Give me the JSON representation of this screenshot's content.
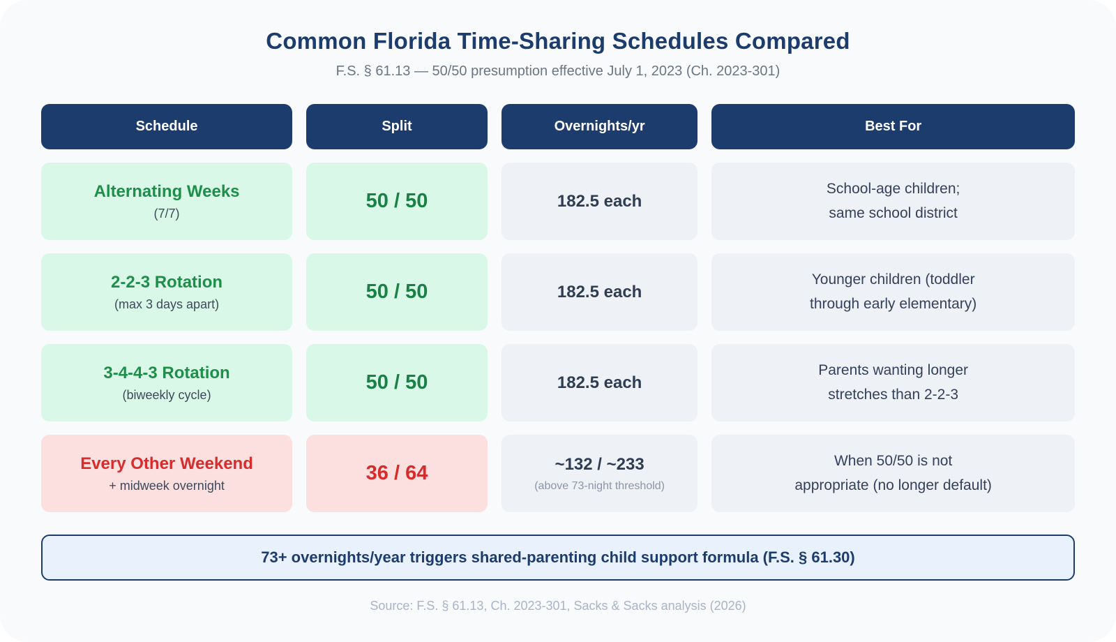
{
  "title": "Common Florida Time-Sharing Schedules Compared",
  "subtitle": "F.S. § 61.13 — 50/50 presumption effective July 1, 2023 (Ch. 2023-301)",
  "table": {
    "headers": [
      "Schedule",
      "Split",
      "Overnights/yr",
      "Best For"
    ],
    "rows": [
      {
        "schedule": "Alternating Weeks",
        "schedule_note": "(7/7)",
        "split": "50 / 50",
        "overnights": "182.5 each",
        "best_for": [
          "School-age children;",
          "same school district"
        ],
        "tone": "positive"
      },
      {
        "schedule": "2-2-3 Rotation",
        "schedule_note": "(max 3 days apart)",
        "split": "50 / 50",
        "overnights": "182.5 each",
        "best_for": [
          "Younger children (toddler",
          "through early elementary)"
        ],
        "tone": "positive"
      },
      {
        "schedule": "3-4-4-3 Rotation",
        "schedule_note": "(biweekly cycle)",
        "split": "50 / 50",
        "overnights": "182.5 each",
        "best_for": [
          "Parents wanting longer",
          "stretches than 2-2-3"
        ],
        "tone": "positive"
      },
      {
        "schedule": "Every Other Weekend",
        "schedule_note": "+ midweek overnight",
        "split": "36 / 64",
        "overnights": "~132 / ~233",
        "overnights_note": "(above 73-night threshold)",
        "best_for": [
          "When 50/50 is not",
          "appropriate (no longer default)"
        ],
        "tone": "negative"
      }
    ]
  },
  "callout": "73+ overnights/year triggers shared-parenting child support formula (F.S. § 61.30)",
  "source": "Source: F.S. § 61.13, Ch. 2023-301, Sacks & Sacks analysis (2026)",
  "colors": {
    "navy": "#1d3c6e",
    "green_text": "#1e8e4b",
    "red_text": "#d62c2c",
    "green_bg": "#d9f8e7",
    "red_bg": "#fcdfdf",
    "neutral_bg": "#eef1f6",
    "callout_bg": "#e9f1fc",
    "card_bg": "#f8fafc"
  },
  "chart_data": {
    "type": "table",
    "title": "Common Florida Time-Sharing Schedules Compared",
    "subtitle": "F.S. § 61.13 — 50/50 presumption effective July 1, 2023 (Ch. 2023-301)",
    "columns": [
      "Schedule",
      "Split",
      "Overnights/yr",
      "Best For"
    ],
    "rows": [
      [
        "Alternating Weeks (7/7)",
        "50 / 50",
        "182.5 each",
        "School-age children; same school district"
      ],
      [
        "2-2-3 Rotation (max 3 days apart)",
        "50 / 50",
        "182.5 each",
        "Younger children (toddler through early elementary)"
      ],
      [
        "3-4-4-3 Rotation (biweekly cycle)",
        "50 / 50",
        "182.5 each",
        "Parents wanting longer stretches than 2-2-3"
      ],
      [
        "Every Other Weekend + midweek overnight",
        "36 / 64",
        "~132 / ~233 (above 73-night threshold)",
        "When 50/50 is not appropriate (no longer default)"
      ]
    ],
    "annotations": [
      "73+ overnights/year triggers shared-parenting child support formula (F.S. § 61.30)",
      "Source: F.S. § 61.13, Ch. 2023-301, Sacks & Sacks analysis (2026)"
    ]
  }
}
